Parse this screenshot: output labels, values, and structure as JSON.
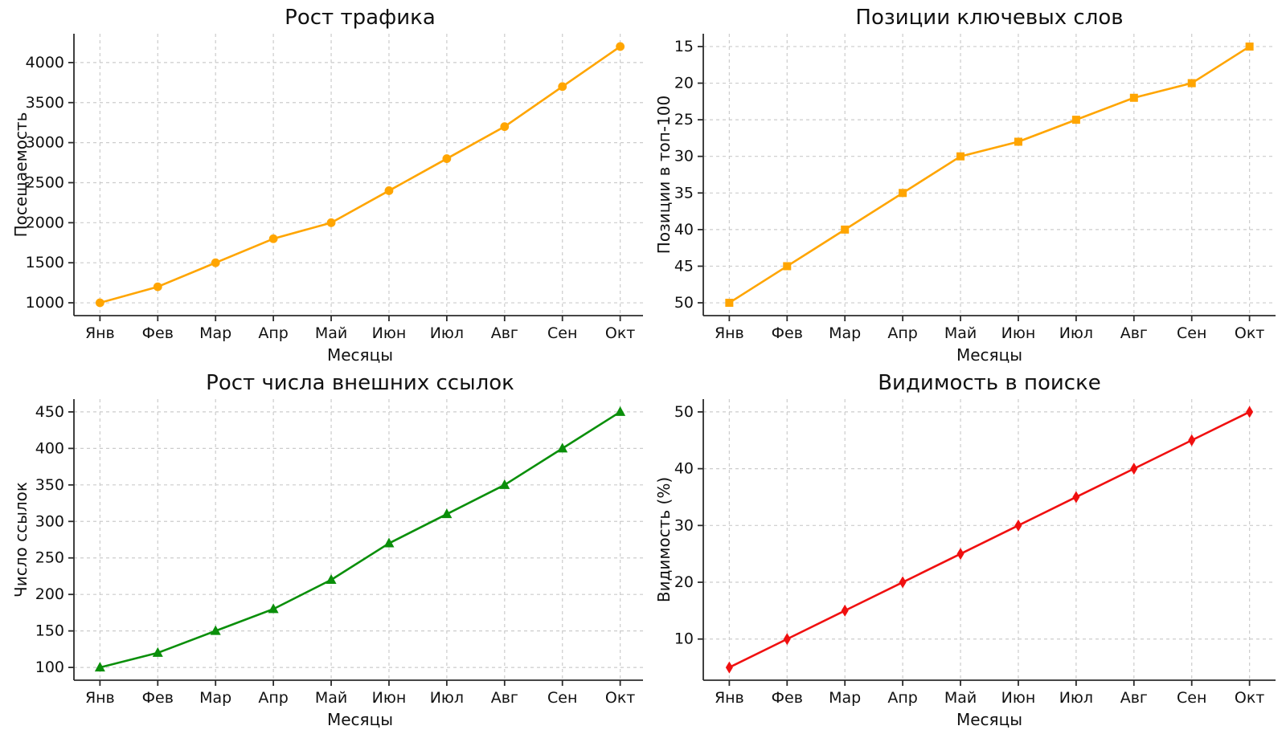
{
  "figure": {
    "background": "#ffffff",
    "grid_color": "#cccccc",
    "spine_color": "#2b2b2b",
    "text_color": "#111111"
  },
  "chart_data": [
    {
      "id": "traffic-growth",
      "type": "line",
      "title": "Рост трафика",
      "xlabel": "Месяцы",
      "ylabel": "Посещаемость",
      "categories": [
        "Янв",
        "Фев",
        "Мар",
        "Апр",
        "Май",
        "Июн",
        "Июл",
        "Авг",
        "Сен",
        "Окт"
      ],
      "values": [
        1000,
        1200,
        1500,
        1800,
        2000,
        2400,
        2800,
        3200,
        3700,
        4200
      ],
      "yticks": [
        1000,
        1500,
        2000,
        2500,
        3000,
        3500,
        4000
      ],
      "ylim_bottom_top": [
        840,
        4360
      ],
      "y_inverted": false,
      "color": "#FFA500",
      "marker": "circle",
      "grid": true,
      "legend": "none"
    },
    {
      "id": "keyword-positions",
      "type": "line",
      "title": "Позиции ключевых слов",
      "xlabel": "Месяцы",
      "ylabel": "Позиции в топ-100",
      "categories": [
        "Янв",
        "Фев",
        "Мар",
        "Апр",
        "Май",
        "Июн",
        "Июл",
        "Авг",
        "Сен",
        "Окт"
      ],
      "values": [
        50,
        45,
        40,
        35,
        30,
        28,
        25,
        22,
        20,
        15
      ],
      "yticks": [
        15,
        20,
        25,
        30,
        35,
        40,
        45,
        50
      ],
      "ylim_bottom_top": [
        51.75,
        13.25
      ],
      "y_inverted": true,
      "color": "#FFA500",
      "marker": "square",
      "grid": true,
      "legend": "none"
    },
    {
      "id": "backlinks-growth",
      "type": "line",
      "title": "Рост числа внешних ссылок",
      "xlabel": "Месяцы",
      "ylabel": "Число ссылок",
      "categories": [
        "Янв",
        "Фев",
        "Мар",
        "Апр",
        "Май",
        "Июн",
        "Июл",
        "Авг",
        "Сен",
        "Окт"
      ],
      "values": [
        100,
        120,
        150,
        180,
        220,
        270,
        310,
        350,
        400,
        450
      ],
      "yticks": [
        100,
        150,
        200,
        250,
        300,
        350,
        400,
        450
      ],
      "ylim_bottom_top": [
        82.5,
        467.5
      ],
      "y_inverted": false,
      "color": "#0a8f0a",
      "marker": "triangle",
      "grid": true,
      "legend": "none"
    },
    {
      "id": "search-visibility",
      "type": "line",
      "title": "Видимость в поиске",
      "xlabel": "Месяцы",
      "ylabel": "Видимость (%)",
      "categories": [
        "Янв",
        "Фев",
        "Мар",
        "Апр",
        "Май",
        "Июн",
        "Июл",
        "Авг",
        "Сен",
        "Окт"
      ],
      "values": [
        5,
        10,
        15,
        20,
        25,
        30,
        35,
        40,
        45,
        50
      ],
      "yticks": [
        10,
        20,
        30,
        40,
        50
      ],
      "ylim_bottom_top": [
        2.75,
        52.25
      ],
      "y_inverted": false,
      "color": "#f01010",
      "marker": "diamond",
      "grid": true,
      "legend": "none"
    }
  ]
}
